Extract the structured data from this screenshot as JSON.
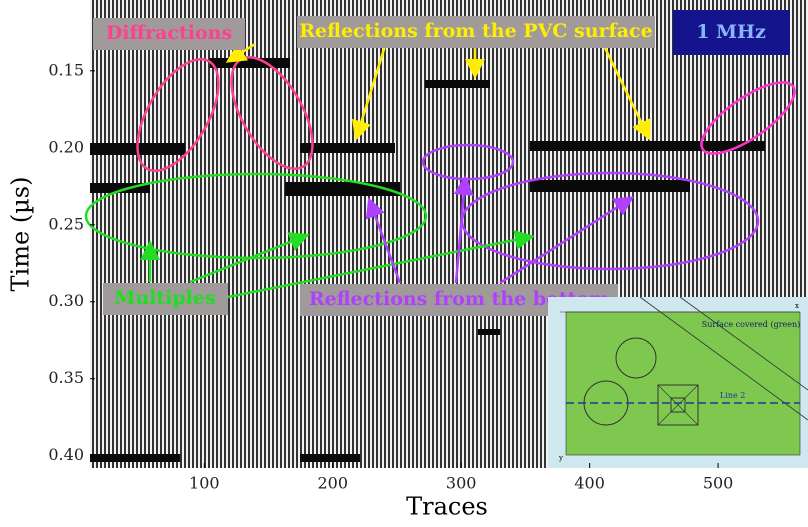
{
  "chart_data": {
    "type": "image",
    "xlabel": "Traces",
    "ylabel": "Time (µs)",
    "xlim": [
      11,
      570
    ],
    "ylim": [
      0.408,
      0.104
    ],
    "xticks": [
      100,
      200,
      300,
      400,
      500
    ],
    "yticks": [
      0.15,
      {
        "value": 0.2,
        "label": "0.20"
      },
      0.25,
      {
        "value": 0.3,
        "label": "0.30"
      },
      0.35,
      {
        "value": 0.4,
        "label": "0.40"
      }
    ],
    "annotations": [
      "Diffractions",
      "Reflections from the PVC surface",
      "1 MHz",
      "Multiples",
      "Reflections from the bottom"
    ],
    "inset": {
      "title": "Surface covered (green)",
      "line": "Line 2",
      "x_axis": "x",
      "y_axis": "y"
    }
  }
}
